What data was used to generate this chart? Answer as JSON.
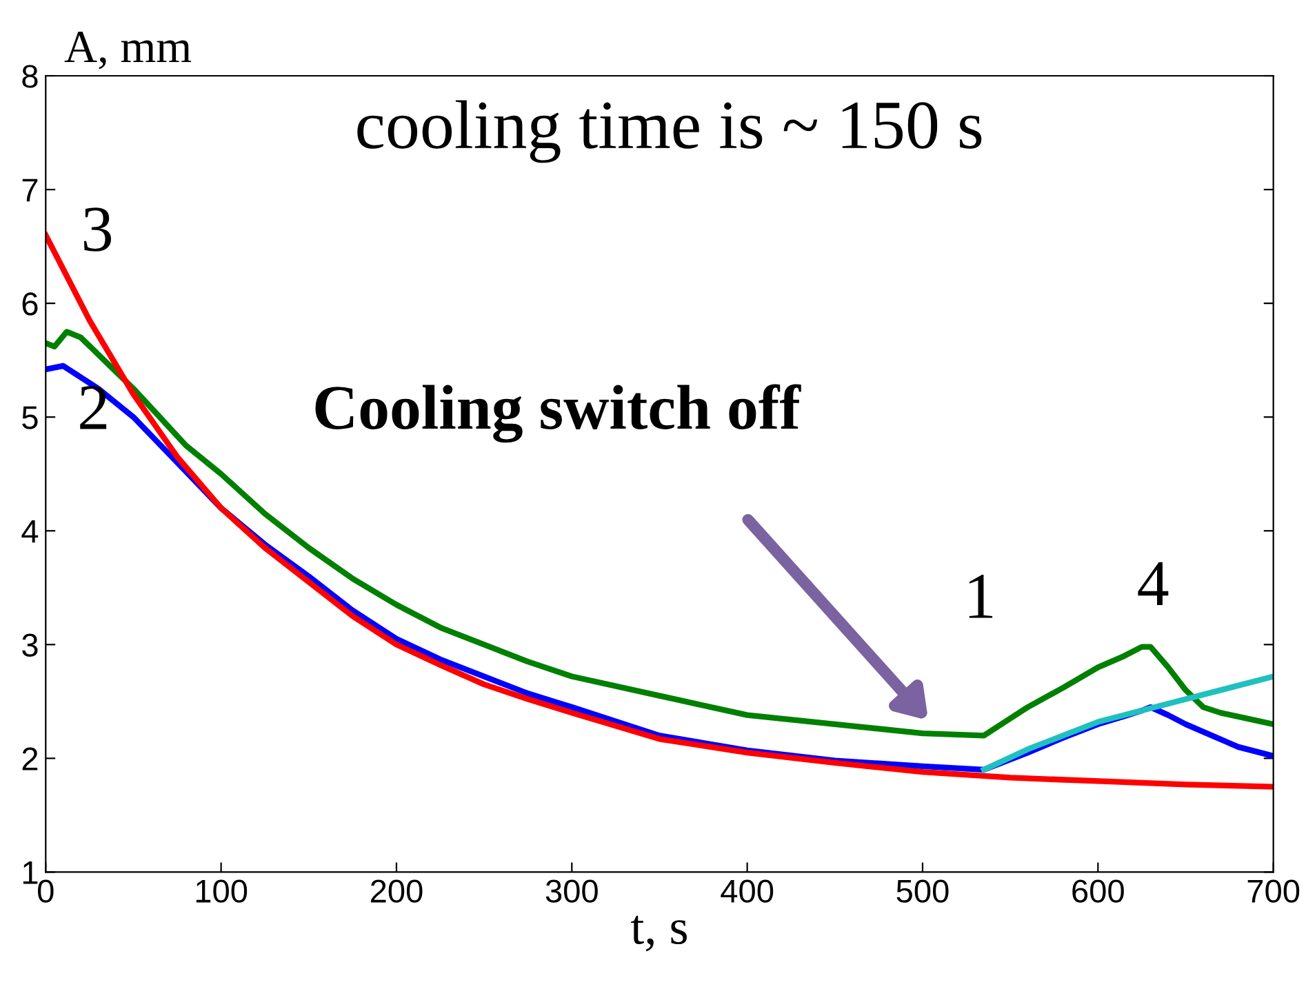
{
  "chart_data": {
    "type": "line",
    "xlabel": "t, s",
    "ylabel": "A, mm",
    "xlim": [
      0,
      700
    ],
    "xticks": [
      0,
      100,
      200,
      300,
      400,
      500,
      600,
      700
    ],
    "ylim": [
      1,
      8
    ],
    "yticks": [
      1,
      2,
      3,
      4,
      5,
      6,
      7,
      8
    ],
    "grid": false,
    "legend": false,
    "marker": "none",
    "line_style": "solid",
    "series": [
      {
        "color": "#008000",
        "x": [
          0,
          5,
          12,
          20,
          30,
          40,
          50,
          65,
          80,
          100,
          125,
          150,
          175,
          200,
          225,
          250,
          275,
          300,
          350,
          400,
          450,
          500,
          535,
          545,
          560,
          580,
          600,
          615,
          625,
          630,
          640,
          650,
          660,
          670,
          685,
          700
        ],
        "values": [
          5.65,
          5.62,
          5.75,
          5.7,
          5.55,
          5.4,
          5.25,
          5.0,
          4.75,
          4.5,
          4.15,
          3.85,
          3.58,
          3.35,
          3.15,
          3.0,
          2.85,
          2.72,
          2.55,
          2.38,
          2.3,
          2.22,
          2.2,
          2.3,
          2.45,
          2.62,
          2.8,
          2.9,
          2.98,
          2.98,
          2.8,
          2.6,
          2.45,
          2.4,
          2.35,
          2.3
        ]
      },
      {
        "color": "#0000ff",
        "x": [
          0,
          10,
          30,
          50,
          75,
          100,
          125,
          150,
          175,
          200,
          225,
          250,
          275,
          300,
          350,
          400,
          450,
          500,
          535,
          560,
          580,
          600,
          615,
          625,
          630,
          640,
          650,
          665,
          680,
          700
        ],
        "values": [
          5.42,
          5.45,
          5.25,
          5.0,
          4.6,
          4.2,
          3.88,
          3.6,
          3.3,
          3.05,
          2.87,
          2.72,
          2.57,
          2.45,
          2.2,
          2.07,
          1.98,
          1.93,
          1.9,
          2.05,
          2.18,
          2.3,
          2.37,
          2.42,
          2.45,
          2.38,
          2.3,
          2.2,
          2.1,
          2.02
        ]
      },
      {
        "color": "#ff0000",
        "x": [
          0,
          25,
          50,
          75,
          100,
          125,
          150,
          175,
          200,
          225,
          250,
          275,
          300,
          350,
          400,
          450,
          500,
          550,
          600,
          650,
          700
        ],
        "values": [
          6.6,
          5.85,
          5.2,
          4.65,
          4.2,
          3.85,
          3.55,
          3.25,
          3.0,
          2.82,
          2.65,
          2.52,
          2.4,
          2.17,
          2.05,
          1.96,
          1.88,
          1.83,
          1.8,
          1.77,
          1.75
        ]
      },
      {
        "color": "#20c0c0",
        "x": [
          535,
          560,
          600,
          650,
          700
        ],
        "values": [
          1.9,
          2.08,
          2.32,
          2.52,
          2.72
        ]
      }
    ],
    "annotations": [
      "cooling time is ~ 150 s",
      "Cooling switch off",
      "3",
      "2",
      "1",
      "4"
    ]
  }
}
